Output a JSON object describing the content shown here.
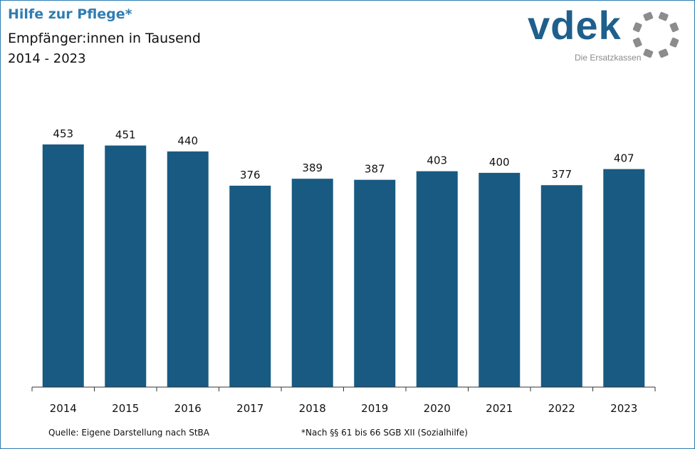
{
  "header": {
    "title": "Hilfe zur Pflege*",
    "subtitle": "Empfänger:innen in Tausend",
    "period": "2014 - 2023"
  },
  "logo": {
    "wordmark": "vdek",
    "tagline": "Die Ersatzkassen",
    "brand_color": "#1e5f8c",
    "ring_color": "#8c8c8c",
    "icon": "segmented-ring-icon"
  },
  "colors": {
    "bar": "#185a82",
    "title": "#2f7db2",
    "border": "#2f7db2"
  },
  "footer": {
    "source": "Quelle: Eigene Darstellung nach StBA",
    "note": "*Nach §§ 61 bis 66 SGB XII (Sozialhilfe)"
  },
  "chart_data": {
    "type": "bar",
    "title": "Hilfe zur Pflege*",
    "subtitle": "Empfänger:innen in Tausend",
    "categories": [
      "2014",
      "2015",
      "2016",
      "2017",
      "2018",
      "2019",
      "2020",
      "2021",
      "2022",
      "2023"
    ],
    "values": [
      453,
      451,
      440,
      376,
      389,
      387,
      403,
      400,
      377,
      407
    ],
    "xlabel": "",
    "ylabel": "",
    "ylim": [
      0,
      500
    ],
    "grid": false,
    "legend": "none",
    "data_labels": true
  }
}
